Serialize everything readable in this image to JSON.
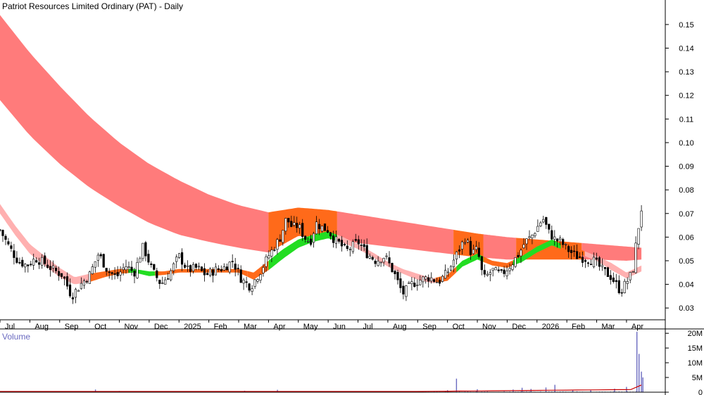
{
  "title": "Patriot Resources Limited Ordinary (PAT) - Daily",
  "volume_label": "Volume",
  "chart_data": {
    "type": "candlestick",
    "price_axis": {
      "ylim": [
        0.025,
        0.158
      ],
      "ticks": [
        0.03,
        0.04,
        0.05,
        0.06,
        0.07,
        0.08,
        0.09,
        0.1,
        0.11,
        0.12,
        0.13,
        0.14,
        0.15
      ],
      "tick_labels": [
        "0.03",
        "0.04",
        "0.05",
        "0.06",
        "0.07",
        "0.08",
        "0.09",
        "0.10",
        "0.11",
        "0.12",
        "0.13",
        "0.14",
        "0.15"
      ]
    },
    "volume_axis": {
      "ylim": [
        0,
        21000000
      ],
      "ticks": [
        0,
        5000000,
        10000000,
        15000000,
        20000000
      ],
      "tick_labels": [
        "0",
        "5M",
        "10M",
        "15M",
        "20M"
      ]
    },
    "x_axis": {
      "labels": [
        "Jul",
        "Aug",
        "Sep",
        "Oct",
        "Nov",
        "Dec",
        "2025",
        "Feb",
        "Mar",
        "Apr",
        "May",
        "Jun",
        "Jul",
        "Aug",
        "Sep",
        "Oct",
        "Nov",
        "Dec",
        "2026",
        "Feb",
        "Mar",
        "Apr"
      ],
      "months_index": [
        0,
        1,
        2,
        3,
        4,
        5,
        6,
        7,
        8,
        9,
        10,
        11,
        12,
        13,
        14,
        15,
        16,
        17,
        18,
        19,
        20,
        21
      ]
    },
    "x_range": [
      0,
      22.3
    ],
    "long_band": {
      "x": [
        0,
        1,
        2,
        3,
        4,
        5,
        6,
        7,
        8,
        9,
        10,
        11,
        12,
        13,
        14,
        15,
        16,
        17,
        18,
        19,
        20,
        21,
        21.5
      ],
      "upper": [
        0.154,
        0.138,
        0.124,
        0.111,
        0.1,
        0.091,
        0.084,
        0.078,
        0.0735,
        0.0705,
        0.0725,
        0.0715,
        0.0695,
        0.0675,
        0.0655,
        0.0635,
        0.0615,
        0.06,
        0.059,
        0.058,
        0.057,
        0.056,
        0.0555
      ],
      "lower": [
        0.118,
        0.103,
        0.091,
        0.081,
        0.073,
        0.066,
        0.061,
        0.058,
        0.0555,
        0.0535,
        0.0605,
        0.0595,
        0.0575,
        0.056,
        0.0545,
        0.053,
        0.0515,
        0.0505,
        0.0505,
        0.0505,
        0.0505,
        0.05,
        0.0505
      ],
      "segments": [
        {
          "from": 0,
          "to": 9,
          "color": "#ff7b7b"
        },
        {
          "from": 9,
          "to": 11.3,
          "color": "#ff6a1a"
        },
        {
          "from": 11.3,
          "to": 15.2,
          "color": "#ff7b7b"
        },
        {
          "from": 15.2,
          "to": 16.2,
          "color": "#ff6a1a"
        },
        {
          "from": 16.2,
          "to": 17.3,
          "color": "#ff7b7b"
        },
        {
          "from": 17.3,
          "to": 19.5,
          "color": "#ff6a1a"
        },
        {
          "from": 19.5,
          "to": 21.5,
          "color": "#ff7b7b"
        }
      ]
    },
    "short_band": {
      "x": [
        0,
        0.5,
        1,
        1.5,
        2,
        2.5,
        3,
        3.5,
        4,
        4.5,
        5,
        5.5,
        6,
        6.5,
        7,
        7.5,
        8,
        8.5,
        9,
        9.5,
        10,
        10.5,
        11,
        11.5,
        12,
        12.5,
        13,
        13.5,
        14,
        14.5,
        15,
        15.5,
        16,
        16.5,
        17,
        17.5,
        18,
        18.5,
        19,
        19.5,
        20,
        20.5,
        21,
        21.5
      ],
      "upper": [
        0.074,
        0.065,
        0.057,
        0.052,
        0.047,
        0.043,
        0.0445,
        0.0455,
        0.0465,
        0.0465,
        0.0455,
        0.0455,
        0.0465,
        0.0465,
        0.0465,
        0.0465,
        0.0465,
        0.045,
        0.05,
        0.055,
        0.059,
        0.061,
        0.0625,
        0.06,
        0.057,
        0.0535,
        0.0495,
        0.0465,
        0.0445,
        0.0425,
        0.044,
        0.05,
        0.053,
        0.05,
        0.049,
        0.052,
        0.056,
        0.059,
        0.056,
        0.0545,
        0.052,
        0.049,
        0.045,
        0.048
      ],
      "lower": [
        0.07,
        0.061,
        0.053,
        0.048,
        0.043,
        0.04,
        0.041,
        0.043,
        0.0445,
        0.045,
        0.0435,
        0.044,
        0.045,
        0.045,
        0.045,
        0.045,
        0.045,
        0.042,
        0.046,
        0.051,
        0.0555,
        0.058,
        0.0595,
        0.0575,
        0.055,
        0.0515,
        0.0475,
        0.0445,
        0.042,
        0.0405,
        0.0415,
        0.0475,
        0.0505,
        0.048,
        0.047,
        0.0495,
        0.0535,
        0.0565,
        0.054,
        0.0525,
        0.05,
        0.046,
        0.0425,
        0.0455
      ],
      "segments": [
        {
          "from": 0,
          "to": 3,
          "color": "#ffb0b0"
        },
        {
          "from": 3,
          "to": 4.3,
          "color": "#ff6a1a"
        },
        {
          "from": 4.3,
          "to": 5.2,
          "color": "#22dd22"
        },
        {
          "from": 5.2,
          "to": 8.3,
          "color": "#ff6a1a"
        },
        {
          "from": 8.3,
          "to": 9.0,
          "color": "#ff6a1a"
        },
        {
          "from": 9.0,
          "to": 11.3,
          "color": "#22dd22"
        },
        {
          "from": 11.3,
          "to": 14.6,
          "color": "#ffb0b0"
        },
        {
          "from": 14.6,
          "to": 15.3,
          "color": "#ff6a1a"
        },
        {
          "from": 15.3,
          "to": 16.2,
          "color": "#22dd22"
        },
        {
          "from": 16.2,
          "to": 17.2,
          "color": "#ff6a1a"
        },
        {
          "from": 17.2,
          "to": 18.8,
          "color": "#22dd22"
        },
        {
          "from": 18.8,
          "to": 19.6,
          "color": "#ff6a1a"
        },
        {
          "from": 19.6,
          "to": 21.5,
          "color": "#ffb0b0"
        }
      ]
    },
    "price_path": {
      "x": [
        0,
        0.3,
        0.6,
        0.9,
        1.2,
        1.5,
        1.8,
        2.1,
        2.4,
        2.7,
        3.0,
        3.3,
        3.6,
        3.9,
        4.2,
        4.5,
        4.8,
        5.1,
        5.4,
        5.7,
        6.0,
        6.3,
        6.6,
        6.9,
        7.2,
        7.5,
        7.8,
        8.1,
        8.4,
        8.7,
        9.0,
        9.2,
        9.4,
        9.6,
        9.8,
        10.0,
        10.2,
        10.4,
        10.6,
        10.8,
        11.0,
        11.2,
        11.4,
        11.6,
        11.8,
        12.0,
        12.3,
        12.6,
        12.9,
        13.2,
        13.5,
        13.8,
        14.1,
        14.4,
        14.7,
        15.0,
        15.2,
        15.4,
        15.6,
        15.8,
        16.0,
        16.2,
        16.5,
        16.8,
        17.1,
        17.4,
        17.6,
        17.8,
        18.0,
        18.2,
        18.4,
        18.6,
        18.8,
        19.0,
        19.3,
        19.6,
        19.9,
        20.2,
        20.5,
        20.8,
        21.0,
        21.2,
        21.35,
        21.5
      ],
      "close": [
        0.063,
        0.056,
        0.05,
        0.048,
        0.051,
        0.049,
        0.046,
        0.044,
        0.035,
        0.04,
        0.044,
        0.053,
        0.046,
        0.043,
        0.048,
        0.045,
        0.056,
        0.046,
        0.04,
        0.045,
        0.052,
        0.046,
        0.047,
        0.044,
        0.046,
        0.047,
        0.05,
        0.042,
        0.039,
        0.045,
        0.052,
        0.056,
        0.06,
        0.068,
        0.064,
        0.065,
        0.06,
        0.058,
        0.066,
        0.064,
        0.063,
        0.059,
        0.057,
        0.054,
        0.056,
        0.058,
        0.053,
        0.05,
        0.052,
        0.045,
        0.036,
        0.04,
        0.042,
        0.043,
        0.041,
        0.045,
        0.05,
        0.055,
        0.06,
        0.053,
        0.055,
        0.042,
        0.046,
        0.044,
        0.048,
        0.053,
        0.058,
        0.06,
        0.064,
        0.068,
        0.062,
        0.059,
        0.058,
        0.055,
        0.052,
        0.051,
        0.05,
        0.046,
        0.043,
        0.037,
        0.041,
        0.045,
        0.06,
        0.072
      ],
      "bar_count": 230
    },
    "volume_spikes": [
      {
        "x": 1.5,
        "value": 300000
      },
      {
        "x": 3.2,
        "value": 900000
      },
      {
        "x": 4.0,
        "value": 400000
      },
      {
        "x": 8.2,
        "value": 500000
      },
      {
        "x": 8.9,
        "value": 300000
      },
      {
        "x": 9.3,
        "value": 800000
      },
      {
        "x": 15.0,
        "value": 700000
      },
      {
        "x": 15.3,
        "value": 4600000
      },
      {
        "x": 16.0,
        "value": 1000000
      },
      {
        "x": 17.2,
        "value": 900000
      },
      {
        "x": 17.5,
        "value": 1500000
      },
      {
        "x": 17.8,
        "value": 1100000
      },
      {
        "x": 18.3,
        "value": 1600000
      },
      {
        "x": 18.6,
        "value": 2500000
      },
      {
        "x": 19.2,
        "value": 800000
      },
      {
        "x": 19.8,
        "value": 700000
      },
      {
        "x": 20.6,
        "value": 1200000
      },
      {
        "x": 21.0,
        "value": 1800000
      },
      {
        "x": 21.35,
        "value": 20500000
      },
      {
        "x": 21.42,
        "value": 13000000
      },
      {
        "x": 21.5,
        "value": 7000000
      },
      {
        "x": 21.55,
        "value": 5000000
      }
    ],
    "colors": {
      "up_candle": "#ffffff",
      "down_candle": "#000000",
      "volume_bar": "#6a6ac0",
      "volume_line": "#cc0000",
      "long_band": "#ff7b7b",
      "short_band_up": "#22dd22",
      "band_transition": "#ff6a1a",
      "short_band_down": "#ffb0b0"
    }
  }
}
